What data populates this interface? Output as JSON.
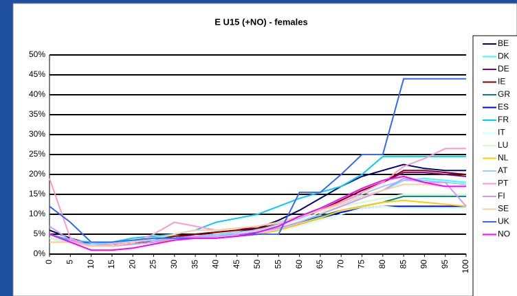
{
  "chart_data": {
    "type": "line",
    "title": "E U15 (+NO) - females",
    "x": [
      0,
      5,
      10,
      15,
      20,
      25,
      30,
      35,
      40,
      45,
      50,
      55,
      60,
      65,
      70,
      75,
      80,
      85,
      90,
      95,
      100
    ],
    "xlim": [
      0,
      100
    ],
    "xticks": [
      0,
      5,
      10,
      15,
      20,
      25,
      30,
      35,
      40,
      45,
      50,
      55,
      60,
      65,
      70,
      75,
      80,
      85,
      90,
      95,
      100
    ],
    "ylim": [
      0,
      50
    ],
    "yticks": [
      {
        "value": 0,
        "label": "0%"
      },
      {
        "value": 5,
        "label": "5%"
      },
      {
        "value": 10,
        "label": "10%"
      },
      {
        "value": 15,
        "label": "15%"
      },
      {
        "value": 20,
        "label": "20%"
      },
      {
        "value": 25,
        "label": "25%"
      },
      {
        "value": 30,
        "label": "30%"
      },
      {
        "value": 35,
        "label": "35%"
      },
      {
        "value": 40,
        "label": "40%"
      },
      {
        "value": 45,
        "label": "45%"
      },
      {
        "value": 50,
        "label": "50%"
      }
    ],
    "grid": true,
    "legend": "right",
    "series": [
      {
        "name": "BE",
        "color": "#000080",
        "values": [
          6,
          4,
          2.5,
          2.5,
          3,
          3.5,
          4,
          4.5,
          5,
          5.5,
          6.5,
          8.5,
          11,
          14,
          17,
          19.5,
          21,
          22.5,
          21.5,
          21,
          21
        ]
      },
      {
        "name": "DK",
        "color": "#33ffff",
        "values": [
          4,
          3,
          2.5,
          3,
          3.5,
          4,
          4.5,
          4.5,
          5,
          5,
          5.5,
          6.5,
          8,
          10,
          12,
          14,
          16,
          18.5,
          19,
          18.5,
          18
        ]
      },
      {
        "name": "DE",
        "color": "#800080",
        "values": [
          5,
          3,
          2,
          2,
          2.5,
          3,
          4,
          5,
          5.5,
          6,
          7,
          8,
          9.5,
          11,
          13.5,
          16,
          18,
          20.5,
          20.5,
          20,
          19.5
        ]
      },
      {
        "name": "IE",
        "color": "#800000",
        "values": [
          4,
          3,
          2,
          2,
          2.5,
          3.5,
          4.5,
          5,
          5.5,
          6,
          6.5,
          7.5,
          9,
          11,
          13.5,
          16,
          18,
          21,
          21,
          20.5,
          20
        ]
      },
      {
        "name": "GR",
        "color": "#008080",
        "values": [
          4,
          3,
          2,
          2,
          2.5,
          3,
          4,
          4.5,
          4.5,
          5,
          5.5,
          6.5,
          8,
          9.5,
          11,
          12,
          13,
          14.5,
          14.5,
          14.5,
          14.5
        ]
      },
      {
        "name": "ES",
        "color": "#0000ff",
        "values": [
          5,
          3.5,
          2.5,
          2.5,
          2.5,
          3,
          3.5,
          4,
          4,
          4.5,
          5,
          6,
          7.5,
          9,
          10.5,
          11.5,
          12,
          12,
          12,
          12,
          12
        ]
      },
      {
        "name": "FR",
        "color": "#00ccff",
        "values": [
          5,
          3.5,
          3,
          3,
          4,
          4.5,
          5,
          6,
          8,
          9,
          10,
          12,
          14,
          15.5,
          17,
          20,
          24.5,
          24.5,
          24.5,
          24.5,
          24.5
        ]
      },
      {
        "name": "IT",
        "color": "#ccffff",
        "values": [
          4,
          3,
          2,
          2,
          2.5,
          3,
          3.5,
          4,
          4.5,
          5,
          5.5,
          6,
          7,
          8.5,
          10,
          11.5,
          12,
          11.5,
          11.5,
          11.5,
          11.5
        ]
      },
      {
        "name": "LU",
        "color": "#ccffcc",
        "values": [
          4,
          3,
          2,
          2,
          2.5,
          3,
          4,
          4.5,
          5,
          5.5,
          6,
          7,
          8.5,
          10.5,
          12,
          13,
          14,
          15,
          15,
          15,
          15
        ]
      },
      {
        "name": "NL",
        "color": "#ffcc00",
        "values": [
          3,
          3,
          2,
          2,
          2.5,
          3,
          3.5,
          4,
          4,
          4.5,
          5,
          6,
          7.5,
          9,
          11,
          12,
          13,
          13.5,
          13,
          12.5,
          12
        ]
      },
      {
        "name": "AT",
        "color": "#99ccff",
        "values": [
          5,
          3,
          2.5,
          2.5,
          3,
          3.5,
          4,
          4.5,
          5,
          5.5,
          6,
          7.5,
          9,
          11,
          13,
          15,
          17,
          18.5,
          18.5,
          18,
          17.5
        ]
      },
      {
        "name": "PT",
        "color": "#ff99cc",
        "values": [
          19,
          4,
          2,
          2.5,
          3,
          5,
          8,
          7,
          6,
          6.5,
          7,
          8,
          9.5,
          11,
          13,
          15.5,
          18,
          22,
          24,
          26.5,
          26.5
        ]
      },
      {
        "name": "FI",
        "color": "#cc99ff",
        "values": [
          7,
          3.5,
          2,
          2,
          2.5,
          3,
          4,
          4.5,
          4.5,
          5,
          5.5,
          6.5,
          8,
          10,
          12,
          14,
          16,
          19,
          18,
          18,
          12
        ]
      },
      {
        "name": "SE",
        "color": "#ffcc99",
        "values": [
          3,
          3,
          2,
          2,
          3,
          4,
          5,
          6,
          6,
          6.5,
          7,
          8,
          9.5,
          11,
          12.5,
          14.5,
          16,
          17.5,
          17.5,
          17,
          17
        ]
      },
      {
        "name": "UK",
        "color": "#3366ff",
        "values": [
          12,
          8,
          3,
          3,
          3.5,
          4,
          4,
          4,
          4,
          4.5,
          5,
          5,
          15.5,
          15.5,
          20,
          25,
          25,
          44,
          44,
          44,
          44
        ]
      },
      {
        "name": "NO",
        "color": "#ff00ff",
        "values": [
          5,
          3,
          1,
          1,
          1.5,
          2.5,
          3.5,
          4,
          4,
          4.5,
          5.5,
          7,
          9.5,
          11.5,
          14,
          16.5,
          18.5,
          19.5,
          18,
          17,
          17
        ]
      }
    ]
  }
}
